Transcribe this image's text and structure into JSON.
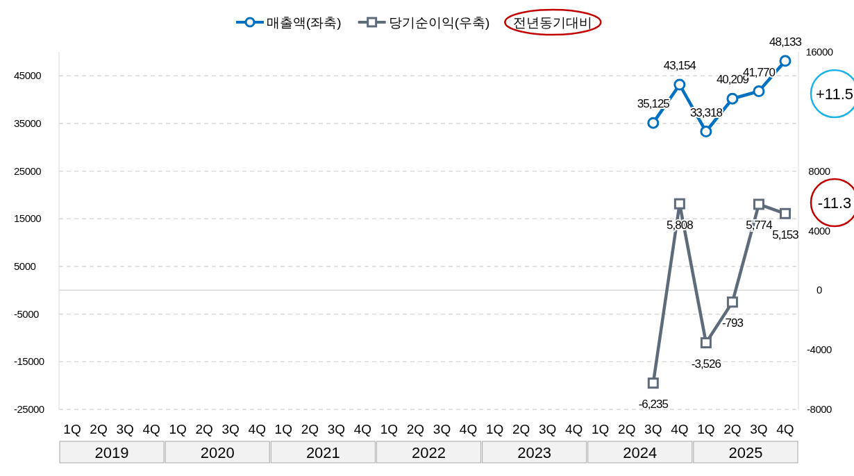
{
  "chart_data": {
    "type": "line",
    "categories": [
      "1Q",
      "2Q",
      "3Q",
      "4Q",
      "1Q",
      "2Q",
      "3Q",
      "4Q",
      "1Q",
      "2Q",
      "3Q",
      "4Q",
      "1Q",
      "2Q",
      "3Q",
      "4Q",
      "1Q",
      "2Q",
      "3Q",
      "4Q",
      "1Q",
      "2Q",
      "3Q",
      "4Q",
      "1Q",
      "2Q",
      "3Q",
      "4Q"
    ],
    "series": [
      {
        "name": "매출액(좌축)",
        "color": "#0070c0",
        "marker": "circle",
        "values": [
          null,
          null,
          null,
          null,
          null,
          null,
          null,
          null,
          null,
          null,
          null,
          null,
          null,
          null,
          null,
          null,
          null,
          null,
          null,
          null,
          null,
          null,
          35125,
          43154,
          33318,
          40209,
          41770,
          48133
        ],
        "value_labels": [
          null,
          null,
          null,
          null,
          null,
          null,
          null,
          null,
          null,
          null,
          null,
          null,
          null,
          null,
          null,
          null,
          null,
          null,
          null,
          null,
          null,
          null,
          "35,125",
          "43,154",
          "33,318",
          "40,209",
          "41,770",
          "48,133"
        ]
      },
      {
        "name": "당기순이익(우축)",
        "color": "#5f6b7a",
        "marker": "square",
        "axis": "y2",
        "values": [
          null,
          null,
          null,
          null,
          null,
          null,
          null,
          null,
          null,
          null,
          null,
          null,
          null,
          null,
          null,
          null,
          null,
          null,
          null,
          null,
          null,
          null,
          -6235,
          5808,
          -3526,
          -793,
          5774,
          5153
        ],
        "value_labels": [
          null,
          null,
          null,
          null,
          null,
          null,
          null,
          null,
          null,
          null,
          null,
          null,
          null,
          null,
          null,
          null,
          null,
          null,
          null,
          null,
          null,
          null,
          "-6,235",
          "5,808",
          "-3,526",
          "-793",
          "5,774",
          "5,153"
        ]
      }
    ],
    "ylim": [
      -25000,
      50000
    ],
    "yticks": [
      45000,
      35000,
      25000,
      15000,
      5000,
      -5000,
      -15000,
      -25000
    ],
    "y2lim": [
      -8000,
      16000
    ],
    "y2ticks": [
      16000,
      8000,
      4000,
      0,
      -4000,
      -8000
    ],
    "grid": "y",
    "legend": "top",
    "ref_lines": [
      {
        "axis": "y",
        "value": 0,
        "color": "#d9d9d9",
        "line_style": "solid"
      }
    ],
    "annotations": [
      "전년동기대비",
      "+11.5",
      "-11.3",
      "2019",
      "2020",
      "2021",
      "2022",
      "2023",
      "2024",
      "2025"
    ]
  }
}
